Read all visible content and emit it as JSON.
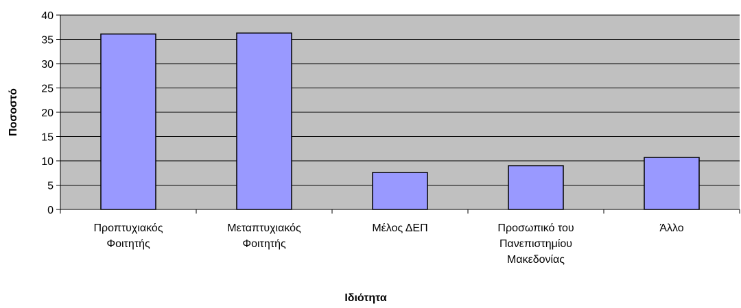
{
  "chart_data": {
    "type": "bar",
    "categories": [
      [
        "Προπτυχιακός",
        "Φοιτητής"
      ],
      [
        "Μεταπτυχιακός",
        "Φοιτητής"
      ],
      [
        "Μέλος ΔΕΠ"
      ],
      [
        "Προσωπικό του",
        "Πανεπιστημίου",
        "Μακεδονίας"
      ],
      [
        "Άλλο"
      ]
    ],
    "values": [
      36.1,
      36.3,
      7.6,
      9.0,
      10.7
    ],
    "xlabel": "Ιδιότητα",
    "ylabel": "Ποσοστό",
    "ylim": [
      0,
      40
    ],
    "yticks": [
      0,
      5,
      10,
      15,
      20,
      25,
      30,
      35,
      40
    ],
    "grid": true,
    "colors": {
      "plot_background": "#c0c0c0",
      "bar_fill": "#9999ff",
      "bar_stroke": "#000000",
      "grid": "#000000"
    }
  }
}
